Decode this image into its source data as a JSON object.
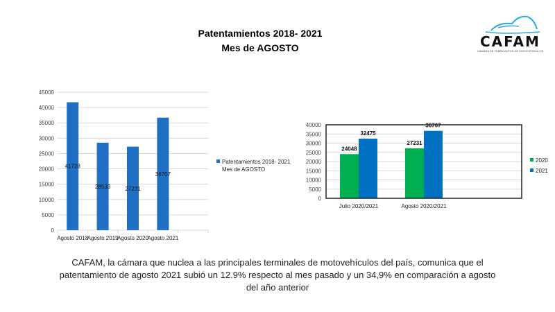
{
  "header": {
    "title_line1": "Patentamientos  2018- 2021",
    "title_line2": "Mes de AGOSTO"
  },
  "logo": {
    "name": "CAFAM",
    "caption": "CÁMARA DE FABRICANTES DE MOTOVEHÍCULOS",
    "icon": "motorcycle-icon",
    "color": "#29a8e0"
  },
  "body_text": "CAFAM, la cámara que nuclea a las principales terminales de motovehículos del país, comunica que el patentamiento de agosto 2021 subió un 12.9% respecto al mes pasado y un 34,9% en comparación a agosto del año anterior",
  "chart_data": [
    {
      "type": "bar",
      "categories": [
        "Agosto 2018",
        "Agosto 2019",
        "Agosto 2020",
        "Agosto 2021"
      ],
      "series": [
        {
          "name": "Patentamientos  2018- 2021 Mes de  AGOSTO",
          "values": [
            41728,
            28533,
            27231,
            36707
          ],
          "color": "#1f6fc5"
        }
      ],
      "ylim": [
        0,
        45000
      ],
      "yticks": [
        0,
        5000,
        10000,
        15000,
        20000,
        25000,
        30000,
        35000,
        40000,
        45000
      ],
      "grid": true,
      "legend": "right",
      "legend_lines": [
        "Patentamientos  2018- 2021",
        "Mes de  AGOSTO"
      ]
    },
    {
      "type": "bar",
      "categories": [
        "Julio 2020/2021",
        "Agosto 2020/2021"
      ],
      "series": [
        {
          "name": "2020",
          "values": [
            24048,
            27231
          ],
          "color": "#00b050"
        },
        {
          "name": "2021",
          "values": [
            32475,
            36707
          ],
          "color": "#0070c0"
        }
      ],
      "ylim": [
        0,
        40000
      ],
      "yticks": [
        0,
        5000,
        10000,
        15000,
        20000,
        25000,
        30000,
        35000,
        40000
      ],
      "grid": true,
      "legend": "right"
    }
  ]
}
